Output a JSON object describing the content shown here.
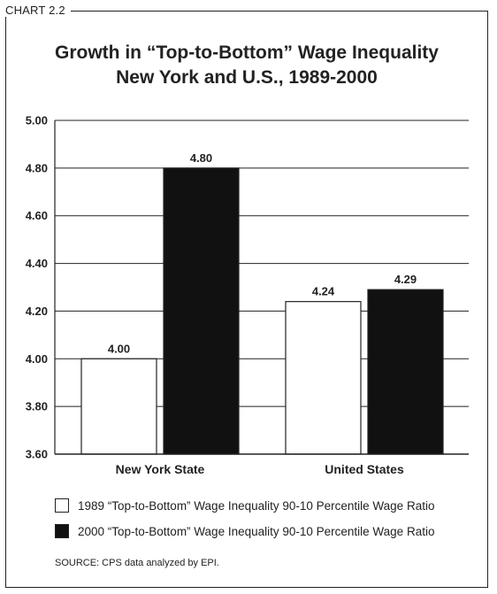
{
  "header": {
    "chart_label": "CHART 2.2",
    "title_line1": "Growth in “Top-to-Bottom” Wage Inequality",
    "title_line2": "New York and U.S., 1989-2000"
  },
  "legend": [
    {
      "label": "1989 “Top-to-Bottom” Wage Inequality 90-10 Percentile Wage Ratio",
      "color": "#ffffff"
    },
    {
      "label": "2000 “Top-to-Bottom” Wage Inequality 90-10 Percentile Wage Ratio",
      "color": "#111111"
    }
  ],
  "footer": {
    "source": "SOURCE: CPS data analyzed by EPI."
  },
  "chart_data": {
    "type": "bar",
    "title": "Growth in “Top-to-Bottom” Wage Inequality New York and U.S., 1989-2000",
    "xlabel": "",
    "ylabel": "",
    "categories": [
      "New York State",
      "United States"
    ],
    "series": [
      {
        "name": "1989 “Top-to-Bottom” Wage Inequality 90-10 Percentile Wage Ratio",
        "values": [
          4.0,
          4.24
        ],
        "labels": [
          "4.00",
          "4.24"
        ],
        "color": "#ffffff"
      },
      {
        "name": "2000 “Top-to-Bottom” Wage Inequality 90-10 Percentile Wage Ratio",
        "values": [
          4.8,
          4.29
        ],
        "labels": [
          "4.80",
          "4.29"
        ],
        "color": "#111111"
      }
    ],
    "ylim": [
      3.6,
      5.0
    ],
    "yticks": [
      3.6,
      3.8,
      4.0,
      4.2,
      4.4,
      4.6,
      4.8,
      5.0
    ],
    "ytick_labels": [
      "3.60",
      "3.80",
      "4.00",
      "4.20",
      "4.40",
      "4.60",
      "4.80",
      "5.00"
    ],
    "grid": true,
    "legend_position": "bottom"
  }
}
